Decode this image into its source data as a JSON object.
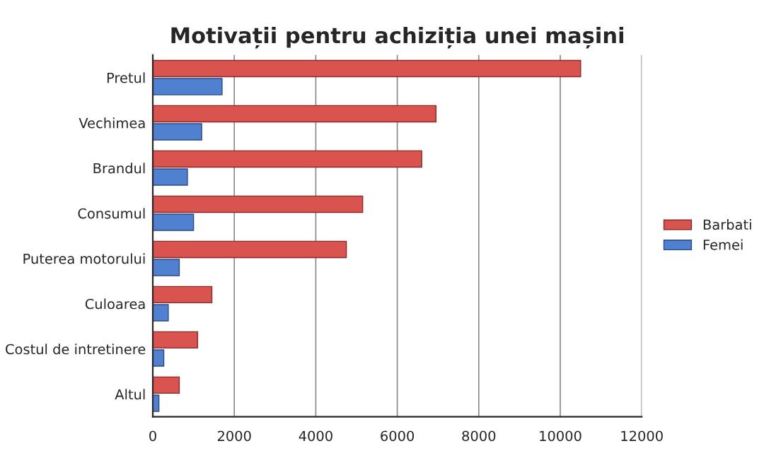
{
  "chart_data": {
    "type": "bar",
    "orientation": "horizontal",
    "title": "Motivații pentru achiziția unei mașini",
    "categories": [
      "Pretul",
      "Vechimea",
      "Brandul",
      "Consumul",
      "Puterea motorului",
      "Culoarea",
      "Costul de intretinere",
      "Altul"
    ],
    "series": [
      {
        "name": "Barbati",
        "color": "#d9534f",
        "values": [
          10500,
          6950,
          6600,
          5150,
          4750,
          1450,
          1100,
          650
        ]
      },
      {
        "name": "Femei",
        "color": "#4f81d0",
        "values": [
          1700,
          1200,
          850,
          1000,
          650,
          380,
          270,
          150
        ]
      }
    ],
    "xlim": [
      0,
      12000
    ],
    "xticks": [
      0,
      2000,
      4000,
      6000,
      8000,
      10000,
      12000
    ],
    "grid": "x",
    "legend": "right"
  }
}
